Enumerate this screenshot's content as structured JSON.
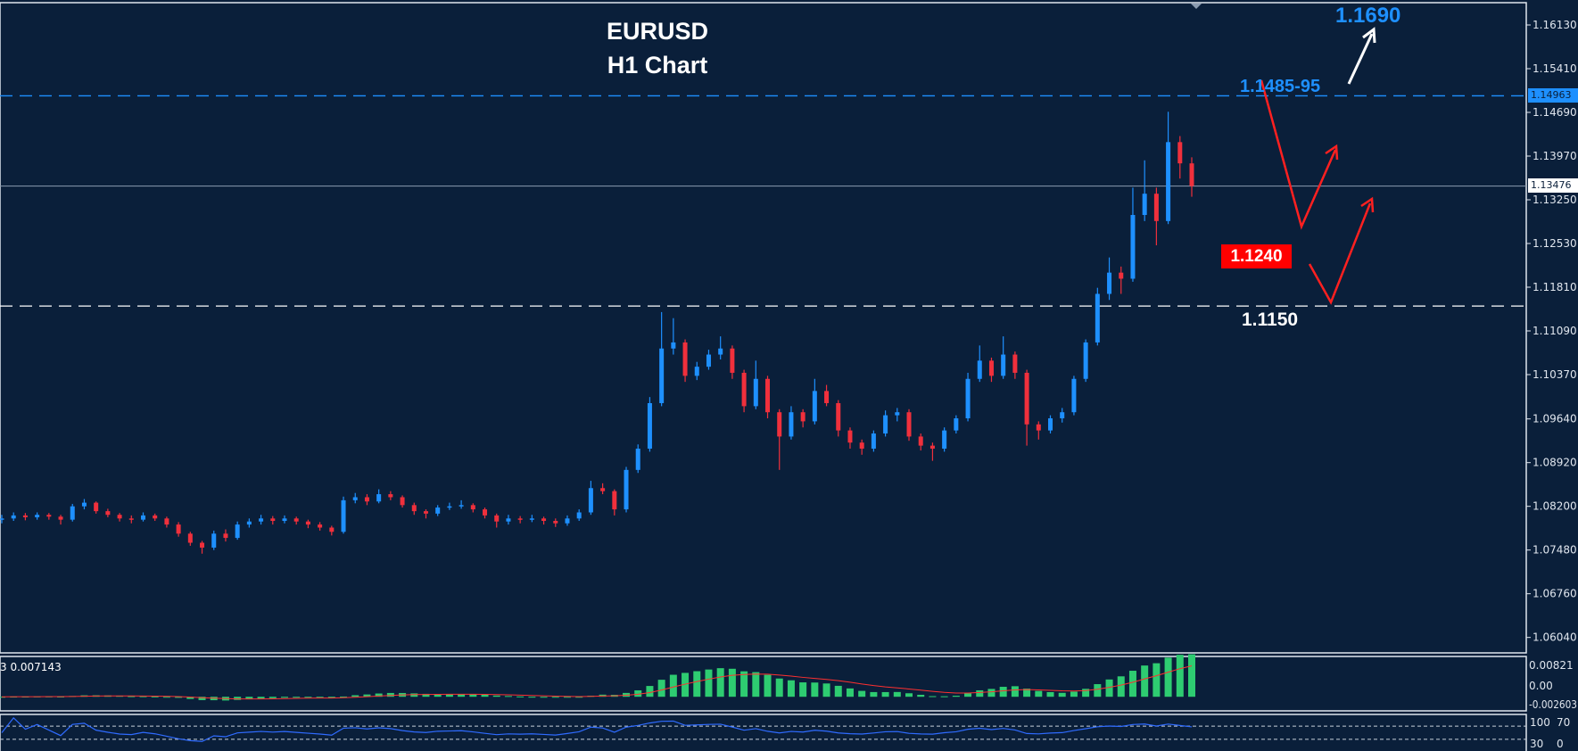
{
  "title": {
    "line1": "EURUSD",
    "line2": "H1 Chart"
  },
  "annotations": {
    "target_high": "1.1690",
    "resistance": "1.1485-95",
    "support_mid": "1.1240",
    "support_low": "1.1150"
  },
  "price_tags": {
    "resistance_line": "1.14963",
    "current_price": "1.13476"
  },
  "macd_panel": {
    "label": "3 0.007143",
    "ticks": [
      "0.00821",
      "0.00",
      "-0.002603"
    ],
    "range": [
      -0.002603,
      0.00821
    ]
  },
  "rsi_panel": {
    "ticks": [
      "100",
      "70",
      "30",
      "0"
    ],
    "levels": [
      70,
      30
    ],
    "range": [
      0,
      100
    ]
  },
  "colors": {
    "background": "#0a1f3a",
    "bull": "#1e90ff",
    "bear": "#f0303c",
    "histogram": "#2ecc71",
    "signal": "#ff3030",
    "rsi": "#2f6bff",
    "resistance_line": "#1e90ff",
    "label_box": "#ff0000"
  },
  "chart_data": {
    "type": "candlestick",
    "symbol": "EURUSD",
    "timeframe": "H1",
    "ylim": [
      1.056,
      1.165
    ],
    "yticks": [
      "1.16130",
      "1.15410",
      "1.14690",
      "1.13970",
      "1.13250",
      "1.12530",
      "1.11810",
      "1.11090",
      "1.10370",
      "1.09640",
      "1.08920",
      "1.08200",
      "1.07480",
      "1.06760",
      "1.06040"
    ],
    "hlines": [
      {
        "value": 1.14963,
        "style": "dashed",
        "color": "#1e90ff"
      },
      {
        "value": 1.13476,
        "style": "solid",
        "color": "#8a9bb0"
      },
      {
        "value": 1.115,
        "style": "dashed",
        "color": "#ffffff"
      }
    ],
    "ohlc": [
      [
        1.0798,
        1.0806,
        1.0792,
        1.08
      ],
      [
        1.08,
        1.081,
        1.0796,
        1.0805
      ],
      [
        1.0805,
        1.0809,
        1.0797,
        1.0802
      ],
      [
        1.0802,
        1.081,
        1.0798,
        1.0806
      ],
      [
        1.0806,
        1.0809,
        1.0798,
        1.0803
      ],
      [
        1.0803,
        1.0806,
        1.079,
        1.0798
      ],
      [
        1.0798,
        1.0824,
        1.0795,
        1.082
      ],
      [
        1.082,
        1.0832,
        1.0815,
        1.0826
      ],
      [
        1.0826,
        1.0828,
        1.0808,
        1.0812
      ],
      [
        1.0812,
        1.0816,
        1.0802,
        1.0806
      ],
      [
        1.0806,
        1.0809,
        1.0795,
        1.08
      ],
      [
        1.08,
        1.0805,
        1.0792,
        1.0798
      ],
      [
        1.0798,
        1.081,
        1.0795,
        1.0805
      ],
      [
        1.0805,
        1.0808,
        1.0796,
        1.08
      ],
      [
        1.08,
        1.0803,
        1.0785,
        1.079
      ],
      [
        1.079,
        1.0794,
        1.077,
        1.0775
      ],
      [
        1.0775,
        1.0778,
        1.0755,
        1.076
      ],
      [
        1.076,
        1.0763,
        1.0742,
        1.0752
      ],
      [
        1.0752,
        1.078,
        1.0748,
        1.0775
      ],
      [
        1.0775,
        1.0782,
        1.0762,
        1.0768
      ],
      [
        1.0768,
        1.0795,
        1.0765,
        1.079
      ],
      [
        1.079,
        1.08,
        1.0785,
        1.0795
      ],
      [
        1.0795,
        1.0806,
        1.079,
        1.08
      ],
      [
        1.08,
        1.0804,
        1.079,
        1.0796
      ],
      [
        1.0796,
        1.0805,
        1.0792,
        1.08
      ],
      [
        1.08,
        1.0803,
        1.079,
        1.0795
      ],
      [
        1.0795,
        1.0798,
        1.0784,
        1.079
      ],
      [
        1.079,
        1.0794,
        1.078,
        1.0785
      ],
      [
        1.0785,
        1.0788,
        1.0772,
        1.0778
      ],
      [
        1.0778,
        1.0836,
        1.0775,
        1.083
      ],
      [
        1.083,
        1.0842,
        1.0825,
        1.0835
      ],
      [
        1.0835,
        1.084,
        1.0822,
        1.0828
      ],
      [
        1.0828,
        1.0848,
        1.0825,
        1.084
      ],
      [
        1.084,
        1.0845,
        1.083,
        1.0835
      ],
      [
        1.0835,
        1.0838,
        1.0818,
        1.0822
      ],
      [
        1.0822,
        1.0826,
        1.0806,
        1.0812
      ],
      [
        1.0812,
        1.0815,
        1.08,
        1.0808
      ],
      [
        1.0808,
        1.0822,
        1.0804,
        1.0818
      ],
      [
        1.0818,
        1.0826,
        1.0814,
        1.082
      ],
      [
        1.082,
        1.083,
        1.0816,
        1.0822
      ],
      [
        1.0822,
        1.0825,
        1.081,
        1.0815
      ],
      [
        1.0815,
        1.0818,
        1.08,
        1.0805
      ],
      [
        1.0805,
        1.0808,
        1.0785,
        1.0795
      ],
      [
        1.0795,
        1.0806,
        1.079,
        1.08
      ],
      [
        1.08,
        1.0804,
        1.0792,
        1.0798
      ],
      [
        1.0798,
        1.0806,
        1.0794,
        1.08
      ],
      [
        1.08,
        1.0803,
        1.079,
        1.0796
      ],
      [
        1.0796,
        1.08,
        1.0786,
        1.0792
      ],
      [
        1.0792,
        1.0805,
        1.0788,
        1.08
      ],
      [
        1.08,
        1.0815,
        1.0796,
        1.081
      ],
      [
        1.081,
        1.0862,
        1.0806,
        1.085
      ],
      [
        1.085,
        1.0858,
        1.084,
        1.0845
      ],
      [
        1.0845,
        1.0848,
        1.0805,
        1.0815
      ],
      [
        1.0815,
        1.0885,
        1.081,
        1.088
      ],
      [
        1.088,
        1.0922,
        1.0875,
        1.0915
      ],
      [
        1.0915,
        1.1,
        1.091,
        1.099
      ],
      [
        1.099,
        1.114,
        1.0985,
        1.108
      ],
      [
        1.108,
        1.113,
        1.107,
        1.109
      ],
      [
        1.109,
        1.1095,
        1.1025,
        1.1035
      ],
      [
        1.1035,
        1.1058,
        1.1028,
        1.105
      ],
      [
        1.105,
        1.1078,
        1.1045,
        1.107
      ],
      [
        1.107,
        1.11,
        1.1062,
        1.108
      ],
      [
        1.108,
        1.1085,
        1.103,
        1.104
      ],
      [
        1.104,
        1.1045,
        1.0975,
        1.0985
      ],
      [
        1.0985,
        1.106,
        1.098,
        1.103
      ],
      [
        1.103,
        1.1035,
        1.0965,
        1.0975
      ],
      [
        1.0975,
        1.098,
        1.088,
        1.0935
      ],
      [
        1.0935,
        1.0985,
        1.093,
        1.0975
      ],
      [
        1.0975,
        1.098,
        1.095,
        1.096
      ],
      [
        1.096,
        1.103,
        1.0955,
        1.101
      ],
      [
        1.101,
        1.102,
        1.0985,
        1.099
      ],
      [
        1.099,
        1.0995,
        1.0935,
        1.0945
      ],
      [
        1.0945,
        1.095,
        1.0915,
        1.0925
      ],
      [
        1.0925,
        1.093,
        1.0905,
        1.0915
      ],
      [
        1.0915,
        1.0945,
        1.091,
        1.094
      ],
      [
        1.094,
        1.0978,
        1.0935,
        1.097
      ],
      [
        1.097,
        1.0982,
        1.096,
        1.0975
      ],
      [
        1.0975,
        1.098,
        1.0928,
        1.0935
      ],
      [
        1.0935,
        1.094,
        1.0912,
        1.092
      ],
      [
        1.092,
        1.0925,
        1.0895,
        1.0915
      ],
      [
        1.0915,
        1.095,
        1.091,
        1.0945
      ],
      [
        1.0945,
        1.097,
        1.094,
        1.0965
      ],
      [
        1.0965,
        1.104,
        1.096,
        1.103
      ],
      [
        1.103,
        1.1085,
        1.1025,
        1.106
      ],
      [
        1.106,
        1.1065,
        1.1025,
        1.1035
      ],
      [
        1.1035,
        1.11,
        1.103,
        1.107
      ],
      [
        1.107,
        1.1075,
        1.103,
        1.104
      ],
      [
        1.104,
        1.1045,
        1.092,
        1.0955
      ],
      [
        1.0955,
        1.096,
        1.093,
        1.0945
      ],
      [
        1.0945,
        1.097,
        1.094,
        1.0965
      ],
      [
        1.0965,
        1.0982,
        1.0958,
        1.0975
      ],
      [
        1.0975,
        1.1035,
        1.097,
        1.103
      ],
      [
        1.103,
        1.1095,
        1.1025,
        1.109
      ],
      [
        1.109,
        1.118,
        1.1085,
        1.117
      ],
      [
        1.117,
        1.123,
        1.116,
        1.1205
      ],
      [
        1.1205,
        1.1215,
        1.117,
        1.1195
      ],
      [
        1.1195,
        1.1345,
        1.119,
        1.13
      ],
      [
        1.13,
        1.139,
        1.129,
        1.1335
      ],
      [
        1.1335,
        1.1345,
        1.125,
        1.129
      ],
      [
        1.129,
        1.147,
        1.1285,
        1.142
      ],
      [
        1.142,
        1.143,
        1.136,
        1.1385
      ],
      [
        1.1385,
        1.1395,
        1.133,
        1.13476
      ]
    ],
    "indicators": [
      "MACD",
      "RSI"
    ]
  }
}
